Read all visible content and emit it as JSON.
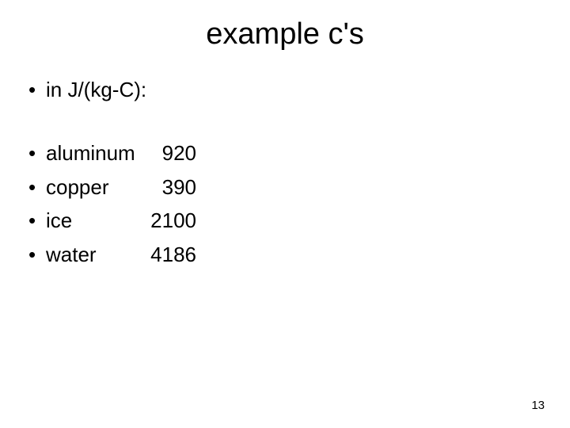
{
  "title": "example c's",
  "unit_line": "in J/(kg-C):",
  "bullet_char": "•",
  "materials": [
    {
      "name": "aluminum",
      "value": "920"
    },
    {
      "name": "copper",
      "value": "390"
    },
    {
      "name": "ice",
      "value": "2100"
    },
    {
      "name": "water",
      "value": "4186"
    }
  ],
  "page_number": "13",
  "colors": {
    "background": "#ffffff",
    "text": "#000000"
  },
  "typography": {
    "title_fontsize": 38,
    "body_fontsize": 26,
    "pagenum_fontsize": 15,
    "font_family": "Arial"
  }
}
